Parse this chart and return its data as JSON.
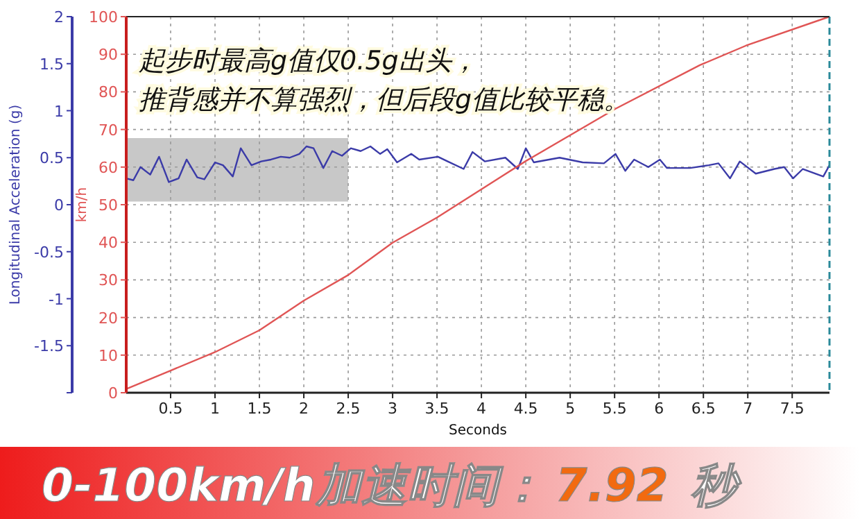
{
  "chart_data": {
    "type": "line",
    "xlabel": "Seconds",
    "ylabel": "Longitudinal Acceleration (g)",
    "y2label": "km/h",
    "xlim": [
      0,
      7.92
    ],
    "xticks": [
      0.5,
      1,
      1.5,
      2,
      2.5,
      3,
      3.5,
      4,
      4.5,
      5,
      5.5,
      6,
      6.5,
      7,
      7.5
    ],
    "ylim": [
      -2,
      2
    ],
    "yticks": [
      {
        "value": -2,
        "label": null
      },
      -1.5,
      -1,
      -0.5,
      0,
      0.5,
      1,
      1.5,
      2
    ],
    "y2lim": [
      0,
      100
    ],
    "y2ticks": [
      0,
      10,
      20,
      30,
      40,
      50,
      60,
      70,
      80,
      90,
      100
    ],
    "grid": true,
    "marker": "none",
    "line_style": "solid",
    "series": [
      {
        "color": "#3b3ba8",
        "axis": "y",
        "x": [
          0,
          0.08,
          0.16,
          0.27,
          0.37,
          0.48,
          0.59,
          0.68,
          0.8,
          0.88,
          1.0,
          1.09,
          1.2,
          1.29,
          1.41,
          1.52,
          1.63,
          1.74,
          1.84,
          1.95,
          2.03,
          2.11,
          2.22,
          2.32,
          2.43,
          2.53,
          2.64,
          2.75,
          2.86,
          2.94,
          3.05,
          3.21,
          3.3,
          3.51,
          3.62,
          3.8,
          3.9,
          4.04,
          4.27,
          4.41,
          4.5,
          4.59,
          4.88,
          5.14,
          5.38,
          5.51,
          5.62,
          5.72,
          5.88,
          6.01,
          6.09,
          6.35,
          6.56,
          6.67,
          6.8,
          6.91,
          7.09,
          7.3,
          7.41,
          7.51,
          7.62,
          7.85,
          7.92
        ],
        "values": [
          0.28,
          0.26,
          0.4,
          0.32,
          0.51,
          0.24,
          0.28,
          0.48,
          0.29,
          0.27,
          0.45,
          0.42,
          0.3,
          0.6,
          0.42,
          0.46,
          0.48,
          0.51,
          0.5,
          0.54,
          0.62,
          0.6,
          0.39,
          0.57,
          0.52,
          0.6,
          0.57,
          0.62,
          0.54,
          0.59,
          0.45,
          0.54,
          0.48,
          0.51,
          0.46,
          0.38,
          0.56,
          0.46,
          0.5,
          0.38,
          0.6,
          0.45,
          0.5,
          0.45,
          0.44,
          0.54,
          0.36,
          0.48,
          0.4,
          0.48,
          0.39,
          0.39,
          0.42,
          0.44,
          0.28,
          0.46,
          0.33,
          0.38,
          0.4,
          0.28,
          0.38,
          0.3,
          0.42
        ]
      },
      {
        "color": "#e05555",
        "axis": "y2",
        "x": [
          0,
          0.5,
          1,
          1.5,
          2,
          2.5,
          3,
          3.5,
          4.5,
          5.51,
          6.46,
          6.98,
          7.92
        ],
        "values": [
          1,
          5.9,
          10.8,
          16.6,
          24.5,
          31.3,
          39.9,
          46.6,
          61.6,
          75.5,
          87.1,
          92.3,
          100
        ]
      }
    ],
    "bands": [
      {
        "axis": "x",
        "from": 0,
        "to": 2.5,
        "color": "#c8c8c8"
      }
    ],
    "ref_lines": [
      {
        "axis": "x",
        "value": 7.92,
        "color": "#2a8a9a",
        "line_style": "dashed"
      }
    ],
    "annotations": [
      "起步时最高g值仅0.5g出头，",
      "推背感并不算强烈，但后段g值比较平稳。",
      "0-100km/h加速时间：",
      "7.92",
      "秒"
    ]
  }
}
